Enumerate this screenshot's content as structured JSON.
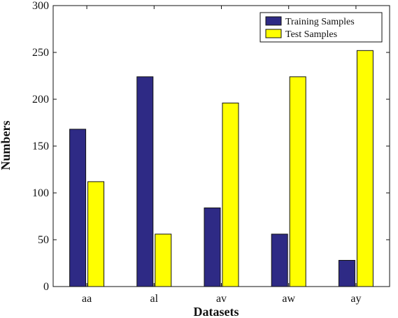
{
  "chart_data": {
    "type": "bar",
    "title": "",
    "xlabel": "Datasets",
    "ylabel": "Numbers",
    "categories": [
      "aa",
      "al",
      "av",
      "aw",
      "ay"
    ],
    "ylim": [
      0,
      300
    ],
    "yticks": [
      0,
      50,
      100,
      150,
      200,
      250,
      300
    ],
    "grid": false,
    "legend_position": "top-right",
    "series": [
      {
        "name": "Training Samples",
        "values": [
          168,
          224,
          84,
          56,
          28
        ],
        "color": "#2e2a85"
      },
      {
        "name": "Test Samples",
        "values": [
          112,
          56,
          196,
          224,
          252
        ],
        "color": "#ffff00"
      }
    ]
  }
}
